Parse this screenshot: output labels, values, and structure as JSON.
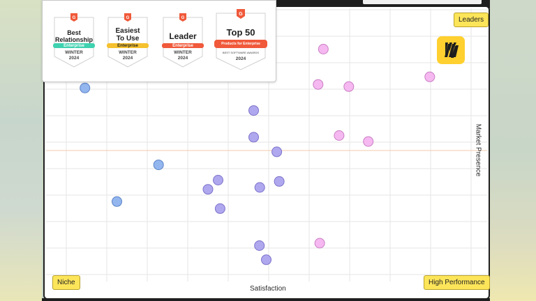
{
  "chart_data": {
    "type": "scatter",
    "x_axis_label": "Satisfaction",
    "y_axis_label": "Market Presence",
    "xlim": [
      0,
      100
    ],
    "ylim": [
      0,
      100
    ],
    "grid": true,
    "quadrant_labels": {
      "top_right": "Leaders",
      "bottom_left": "Niche",
      "bottom_right": "High Performance"
    },
    "series": [
      {
        "color": "#f5b8f0",
        "stroke": "#c97ec4",
        "points": [
          [
            63.5,
            85.0
          ],
          [
            62.2,
            72.0
          ],
          [
            69.8,
            71.2
          ],
          [
            89.8,
            74.8
          ],
          [
            67.4,
            53.2
          ],
          [
            74.6,
            51.0
          ],
          [
            62.6,
            13.6
          ]
        ]
      },
      {
        "color": "#b0a8ef",
        "stroke": "#7b72c9",
        "points": [
          [
            46.3,
            62.4
          ],
          [
            46.3,
            52.6
          ],
          [
            52.0,
            47.2
          ],
          [
            37.5,
            36.8
          ],
          [
            35.0,
            33.4
          ],
          [
            47.8,
            34.1
          ],
          [
            52.6,
            36.3
          ],
          [
            38.0,
            26.3
          ],
          [
            47.7,
            12.7
          ],
          [
            49.4,
            7.5
          ]
        ]
      },
      {
        "color": "#93b6ef",
        "stroke": "#5b83c6",
        "points": [
          [
            4.6,
            70.7
          ],
          [
            22.8,
            42.4
          ],
          [
            12.5,
            28.9
          ]
        ]
      }
    ]
  },
  "badges": [
    {
      "title_line1": "Best",
      "title_line2": "Relationship",
      "ribbon": "Enterprise",
      "ribbon_color": "#3fd2b0",
      "season": "WINTER",
      "year": "2024"
    },
    {
      "title_line1": "Easiest",
      "title_line2": "To Use",
      "ribbon": "Enterprise",
      "ribbon_color": "#f5c12e",
      "season": "WINTER",
      "year": "2024"
    },
    {
      "title_line1": "Leader",
      "title_line2": "",
      "ribbon": "Enterprise",
      "ribbon_color": "#f0593a",
      "season": "WINTER",
      "year": "2024"
    },
    {
      "title_line1": "Top 50",
      "title_line2": "",
      "ribbon": "Products for Enterprise",
      "ribbon_color": "#f0593a",
      "season": "BEST SOFTWARE AWARDS",
      "year": "2024"
    }
  ],
  "colors": {
    "quadrant_fill": "#fde55a",
    "g2_red": "#f0593a",
    "logo_yellow": "#ffd02f"
  },
  "icons": {
    "logo": "miro-logo-icon",
    "badge_mark": "g2-logo-icon"
  }
}
